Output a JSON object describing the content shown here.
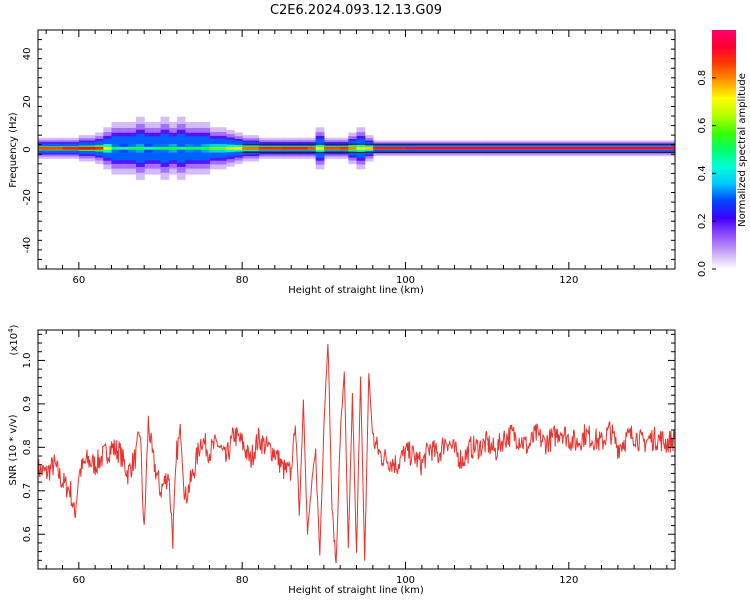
{
  "chart_data": [
    {
      "type": "heatmap",
      "title": "C2E6.2024.093.12.13.G09",
      "xlabel": "Height of straight line (km)",
      "ylabel": "Frequency (Hz)",
      "xlim": [
        55,
        133
      ],
      "ylim": [
        -50,
        50
      ],
      "x_ticks": [
        60,
        80,
        100,
        120
      ],
      "y_ticks": [
        40,
        20,
        0,
        -20,
        -40
      ],
      "colorbar": {
        "label": "Normalized spectral amplitude",
        "range": [
          0,
          1
        ],
        "ticks": [
          "0.0",
          "0.2",
          "0.4",
          "0.6",
          "0.8"
        ],
        "colors": [
          "#ffffff",
          "#c7a6f5",
          "#8f4dfb",
          "#3b00ff",
          "#0046ff",
          "#00c8ff",
          "#00ffd4",
          "#00ff6a",
          "#3cff00",
          "#b8ff00",
          "#ffff00",
          "#ff9a00",
          "#ff3c00",
          "#ff0030",
          "#ff006e"
        ]
      },
      "ridge": {
        "frequency_hz": 0.5,
        "heights_km": [
          55,
          58,
          60,
          62,
          63,
          64,
          65,
          66,
          67,
          68,
          69,
          70,
          71,
          72,
          73,
          74,
          75,
          76,
          77,
          78,
          79,
          80,
          82,
          85,
          87,
          88,
          89,
          90,
          92,
          93,
          94,
          95,
          96,
          100,
          110,
          120,
          130,
          133
        ],
        "amplitude": [
          0.85,
          0.9,
          0.92,
          0.88,
          0.7,
          0.5,
          0.45,
          0.5,
          0.55,
          0.45,
          0.5,
          0.5,
          0.55,
          0.48,
          0.52,
          0.5,
          0.55,
          0.6,
          0.6,
          0.65,
          0.7,
          0.82,
          0.88,
          0.9,
          0.9,
          0.85,
          0.7,
          0.85,
          0.88,
          0.8,
          0.7,
          0.75,
          0.9,
          0.95,
          0.95,
          0.95,
          0.95,
          0.95
        ],
        "spread_hz": [
          2,
          2,
          2.5,
          3,
          4,
          5,
          5,
          5,
          6,
          5,
          5,
          6,
          5,
          6,
          5,
          5,
          5,
          4,
          4,
          3.5,
          3,
          2.5,
          2,
          2,
          2,
          2,
          4,
          2,
          2,
          3,
          4,
          2.5,
          1.5,
          1.5,
          1.5,
          1.5,
          1.5,
          1.5
        ]
      }
    },
    {
      "type": "line",
      "xlabel": "Height of straight line (km)",
      "ylabel": "SNR (10 * v/v)",
      "scale_label": "(x10",
      "scale_exp": "4",
      "scale_close": ")",
      "xlim": [
        55,
        133
      ],
      "ylim": [
        0.52,
        1.07
      ],
      "x_ticks": [
        60,
        80,
        100,
        120
      ],
      "y_ticks": [
        "0.6",
        "0.7",
        "0.8",
        "0.9",
        "1.0"
      ],
      "y_tick_values": [
        0.6,
        0.7,
        0.8,
        0.9,
        1.0
      ],
      "color": "#e8332f",
      "series": [
        {
          "x": [
            55,
            56,
            57,
            58,
            59,
            59.5,
            60,
            61,
            62,
            63,
            64,
            65,
            66,
            67,
            67.5,
            68,
            68.5,
            69,
            70,
            71,
            71.5,
            72,
            72.5,
            73,
            74,
            75,
            76,
            77,
            78,
            79,
            80,
            81,
            82,
            83,
            84,
            85,
            86,
            86.5,
            87,
            87.5,
            88,
            88.5,
            89,
            89.5,
            90,
            90.5,
            91,
            91.5,
            92,
            92.5,
            93,
            93.5,
            94,
            94.5,
            95,
            95.5,
            96,
            97,
            98,
            99,
            100,
            101,
            102,
            103,
            104,
            105,
            106,
            107,
            108,
            109,
            110,
            111,
            112,
            113,
            114,
            115,
            116,
            117,
            118,
            119,
            120,
            121,
            122,
            123,
            124,
            125,
            126,
            127,
            128,
            129,
            130,
            131,
            132,
            133
          ],
          "y": [
            0.75,
            0.74,
            0.76,
            0.72,
            0.7,
            0.64,
            0.74,
            0.77,
            0.76,
            0.78,
            0.8,
            0.79,
            0.74,
            0.78,
            0.84,
            0.6,
            0.86,
            0.78,
            0.7,
            0.74,
            0.59,
            0.79,
            0.84,
            0.68,
            0.74,
            0.82,
            0.79,
            0.81,
            0.77,
            0.83,
            0.81,
            0.77,
            0.82,
            0.8,
            0.79,
            0.75,
            0.74,
            0.86,
            0.65,
            0.91,
            0.6,
            0.71,
            0.79,
            0.55,
            0.85,
            1.05,
            0.66,
            0.53,
            0.82,
            0.98,
            0.56,
            0.92,
            0.55,
            0.97,
            0.53,
            0.97,
            0.82,
            0.78,
            0.77,
            0.76,
            0.79,
            0.78,
            0.76,
            0.8,
            0.78,
            0.82,
            0.79,
            0.77,
            0.8,
            0.8,
            0.81,
            0.79,
            0.82,
            0.83,
            0.82,
            0.8,
            0.83,
            0.81,
            0.82,
            0.84,
            0.82,
            0.81,
            0.83,
            0.82,
            0.81,
            0.84,
            0.8,
            0.82,
            0.83,
            0.81,
            0.82,
            0.82,
            0.81,
            0.82
          ]
        }
      ]
    }
  ]
}
